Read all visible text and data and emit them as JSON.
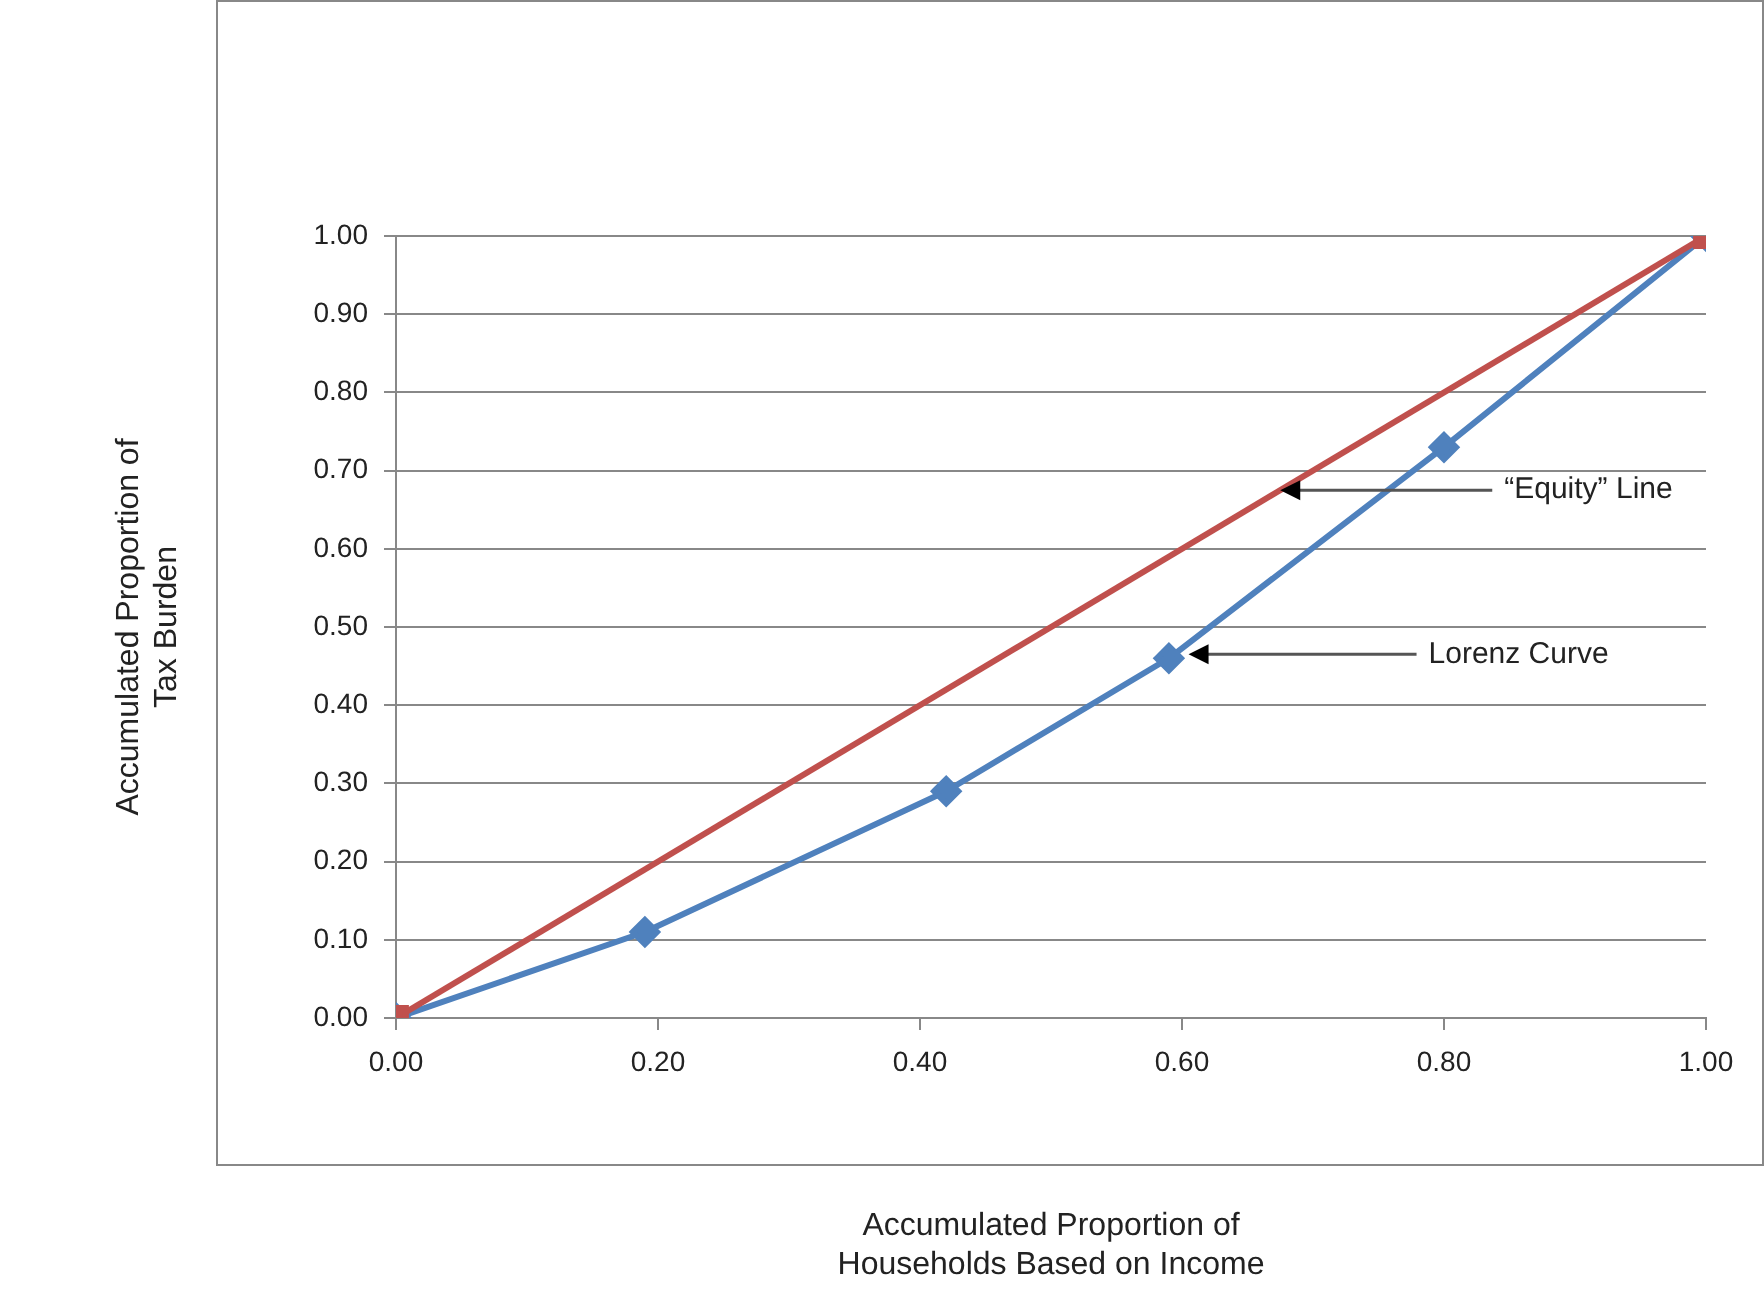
{
  "chart_data": {
    "type": "line",
    "xlabel": "Accumulated Proportion of\nHouseholds Based on Income",
    "ylabel": "Accumulated Proportion of\nTax Burden",
    "series": [
      {
        "color": "#4f81bd",
        "marker": "diamond",
        "x": [
          0,
          0.19,
          0.42,
          0.59,
          0.8,
          1
        ],
        "values": [
          0,
          0.11,
          0.29,
          0.46,
          0.73,
          1
        ]
      },
      {
        "color": "#c0504d",
        "marker": "square",
        "x": [
          0,
          1
        ],
        "values": [
          0,
          1
        ]
      }
    ],
    "xlim": [
      0,
      1
    ],
    "xticks": [
      {
        "value": 0,
        "label": "0.00"
      },
      {
        "value": 0.2,
        "label": "0.20"
      },
      {
        "value": 0.4,
        "label": "0.40"
      },
      {
        "value": 0.6,
        "label": "0.60"
      },
      {
        "value": 0.8,
        "label": "0.80"
      },
      {
        "value": 1,
        "label": "1.00"
      }
    ],
    "ylim": [
      0,
      1
    ],
    "yticks": [
      {
        "value": 0,
        "label": "0.00"
      },
      {
        "value": 0.1,
        "label": "0.10"
      },
      {
        "value": 0.2,
        "label": "0.20"
      },
      {
        "value": 0.3,
        "label": "0.30"
      },
      {
        "value": 0.4,
        "label": "0.40"
      },
      {
        "value": 0.5,
        "label": "0.50"
      },
      {
        "value": 0.6,
        "label": "0.60"
      },
      {
        "value": 0.7,
        "label": "0.70"
      },
      {
        "value": 0.8,
        "label": "0.80"
      },
      {
        "value": 0.9,
        "label": "0.90"
      },
      {
        "value": 1,
        "label": "1.00"
      }
    ],
    "grid": "y",
    "legend": false,
    "line_style": "solid",
    "annotations": [
      {
        "text": "“Equity” Line",
        "x": 0.675,
        "y": 0.675
      },
      {
        "text": "Lorenz Curve",
        "x": 0.605,
        "y": 0.465
      }
    ]
  }
}
